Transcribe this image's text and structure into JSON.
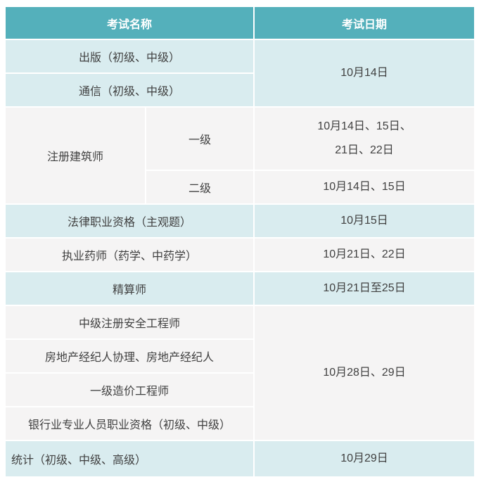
{
  "table": {
    "title_semantic": "2023年10月考试时间安排表",
    "colors": {
      "header_bg": "#54b0bb",
      "header_text": "#ffffff",
      "row_blue_bg": "#d9ecef",
      "row_gray_bg": "#f5f4f4",
      "body_text": "#404040",
      "grid_gap": "#ffffff"
    },
    "header": {
      "exam_name": "考试名称",
      "exam_date": "考试日期"
    },
    "rows": [
      {
        "name": "出版（初级、中级）",
        "date": "10月14日"
      },
      {
        "name": "通信（初级、中级）"
      },
      {
        "group": "注册建筑师",
        "level": "一级",
        "date": "10月14日、15日、\n21日、22日"
      },
      {
        "level": "二级",
        "date": "10月14日、15日"
      },
      {
        "name": "法律职业资格（主观题）",
        "date": "10月15日"
      },
      {
        "name": "执业药师（药学、中药学）",
        "date": "10月21日、22日"
      },
      {
        "name": "精算师",
        "date": "10月21日至25日"
      },
      {
        "name": "中级注册安全工程师",
        "date": "10月28日、29日"
      },
      {
        "name": "房地产经纪人协理、房地产经纪人"
      },
      {
        "name": "一级造价工程师"
      },
      {
        "name": "银行业专业人员职业资格（初级、中级）"
      },
      {
        "name": "统计（初级、中级、高级）",
        "date": "10月29日"
      }
    ]
  }
}
